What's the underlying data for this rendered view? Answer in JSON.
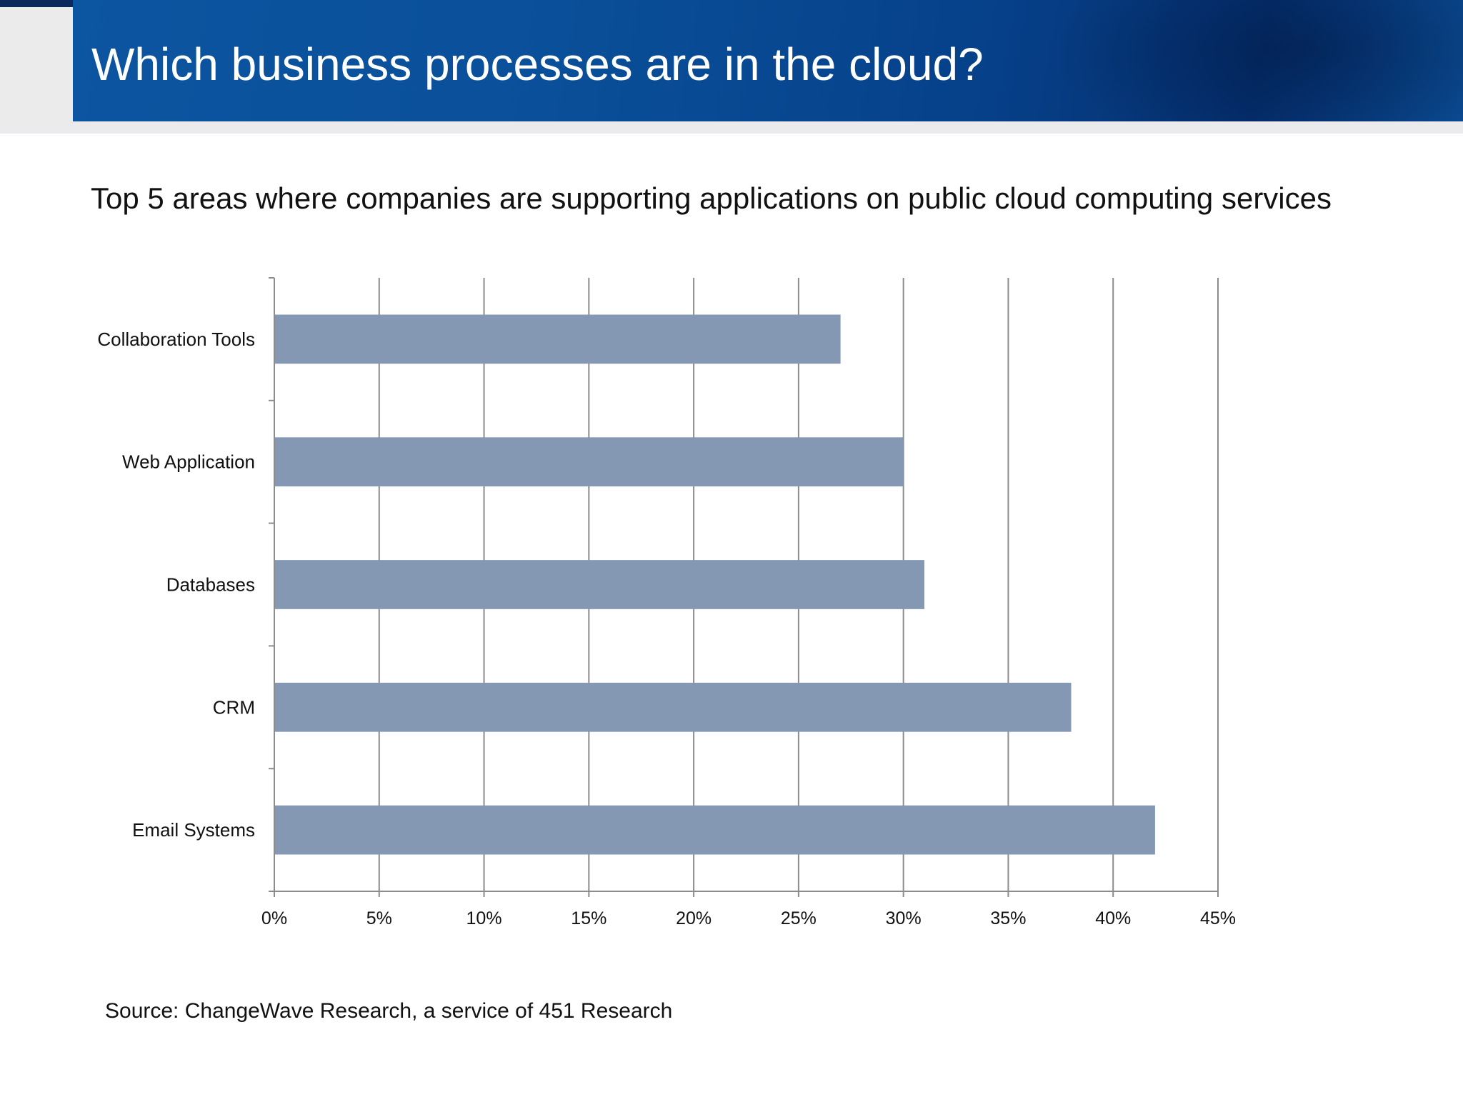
{
  "slide": {
    "title": "Which business processes are in the cloud?",
    "source": "Source: ChangeWave Research, a service of 451 Research"
  },
  "colors": {
    "header": "#0a4f99",
    "bar": "#8497b3",
    "grid": "#8c8c8c"
  },
  "chart_data": {
    "type": "bar",
    "orientation": "horizontal",
    "title": "Top 5 areas where companies are supporting applications on public cloud computing services",
    "categories": [
      "Collaboration Tools",
      "Web Application",
      "Databases",
      "CRM",
      "Email Systems"
    ],
    "values": [
      27,
      30,
      31,
      38,
      42
    ],
    "xlim": [
      0,
      45
    ],
    "xticks": [
      "0%",
      "5%",
      "10%",
      "15%",
      "20%",
      "25%",
      "30%",
      "35%",
      "40%",
      "45%"
    ],
    "xtick_values": [
      0,
      5,
      10,
      15,
      20,
      25,
      30,
      35,
      40,
      45
    ],
    "grid": true,
    "legend": "none"
  }
}
